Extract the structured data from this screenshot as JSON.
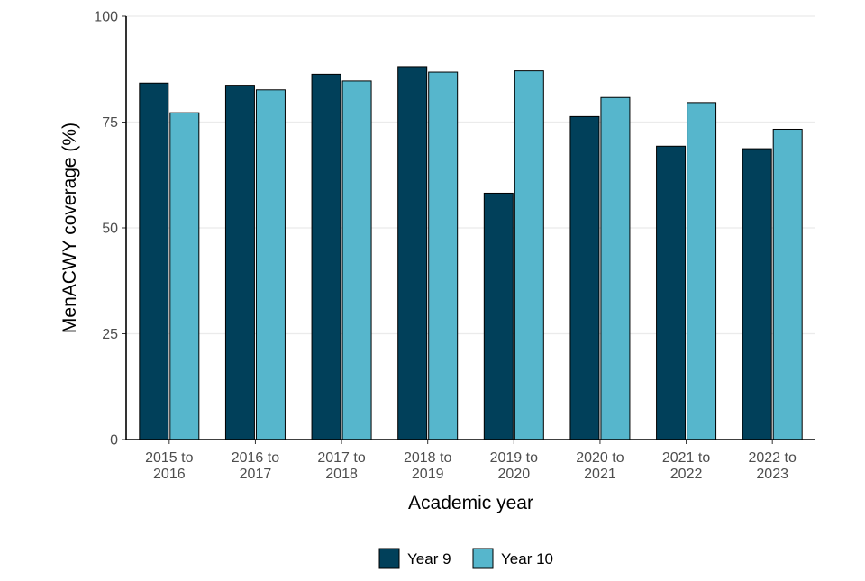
{
  "chart_data": {
    "type": "bar",
    "title": "",
    "xlabel": "Academic year",
    "ylabel": "MenACWY coverage (%)",
    "ylim": [
      0,
      100
    ],
    "yticks": [
      0,
      25,
      50,
      75,
      100
    ],
    "grid": "horizontal",
    "legend_position": "bottom",
    "categories": [
      [
        "2015 to",
        "2016"
      ],
      [
        "2016 to",
        "2017"
      ],
      [
        "2017 to",
        "2018"
      ],
      [
        "2018 to",
        "2019"
      ],
      [
        "2019 to",
        "2020"
      ],
      [
        "2020 to",
        "2021"
      ],
      [
        "2021 to",
        "2022"
      ],
      [
        "2022 to",
        "2023"
      ]
    ],
    "series": [
      {
        "name": "Year 9",
        "color": "#01405a",
        "values": [
          84.2,
          83.7,
          86.3,
          88.1,
          58.2,
          76.3,
          69.3,
          68.7
        ]
      },
      {
        "name": "Year 10",
        "color": "#56b6cc",
        "values": [
          77.2,
          82.6,
          84.7,
          86.8,
          87.1,
          80.8,
          79.6,
          73.3
        ]
      }
    ]
  }
}
